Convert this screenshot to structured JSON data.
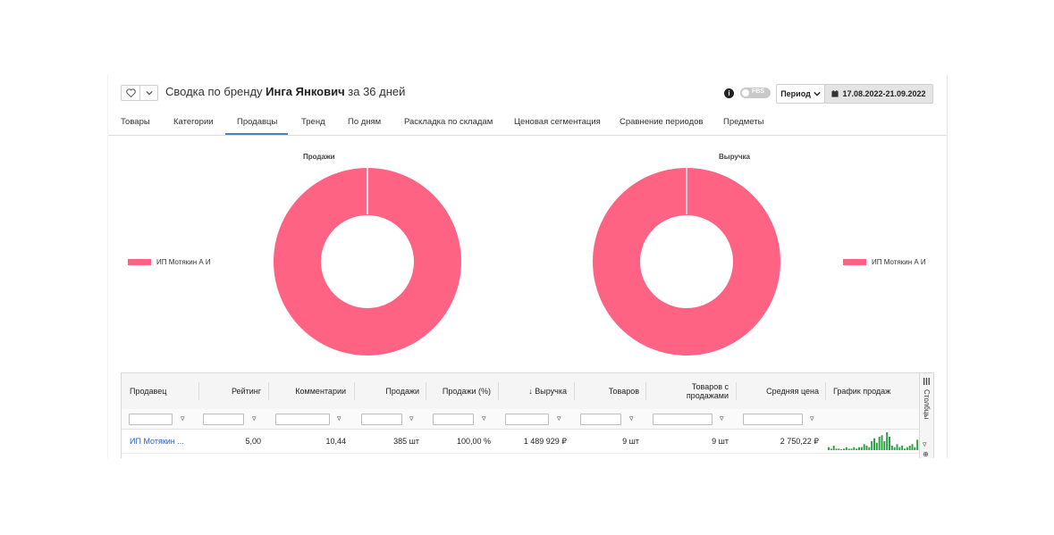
{
  "header": {
    "title_prefix": "Сводка по бренду",
    "brand": "Инга Янкович",
    "title_suffix": "за 36 дней",
    "fbs_label": "FBS",
    "period_label": "Период",
    "date_range": "17.08.2022-21.09.2022"
  },
  "tabs": [
    "Товары",
    "Категории",
    "Продавцы",
    "Тренд",
    "По дням",
    "Раскладка по складам",
    "Ценовая сегментация",
    "Сравнение периодов",
    "Предметы"
  ],
  "active_tab": "Продавцы",
  "colors": {
    "accent": "#4a7fc1",
    "slice": "#ff6384",
    "spark": "#2ea043"
  },
  "charts": {
    "sales": {
      "title": "Продажи",
      "legend": "ИП Мотякин А И"
    },
    "revenue": {
      "title": "Выручка",
      "legend": "ИП Мотякин А И"
    }
  },
  "chart_data": [
    {
      "type": "pie",
      "title": "Продажи",
      "categories": [
        "ИП Мотякин А И"
      ],
      "values": [
        100
      ],
      "legend": "left"
    },
    {
      "type": "pie",
      "title": "Выручка",
      "categories": [
        "ИП Мотякин А И"
      ],
      "values": [
        100
      ],
      "legend": "right"
    }
  ],
  "table": {
    "columns": [
      "Продавец",
      "Рейтинг",
      "Комментарии",
      "Продажи",
      "Продажи (%)",
      "↓ Выручка",
      "Товаров",
      "Товаров с продажами",
      "Средняя цена",
      "График продаж"
    ],
    "rows": [
      {
        "seller": "ИП Мотякин ...",
        "rating": "5,00",
        "comments": "10,44",
        "sales": "385 шт",
        "sales_pct": "100,00 %",
        "revenue": "1 489 929 ₽",
        "items": "9 шт",
        "items_with_sales": "9 шт",
        "avg_price": "2 750,22 ₽"
      }
    ],
    "sparkline": [
      2,
      1,
      3,
      1,
      1,
      0,
      1,
      2,
      1,
      1,
      2,
      1,
      2,
      2,
      4,
      3,
      2,
      6,
      8,
      5,
      9,
      10,
      6,
      12,
      9,
      3,
      2,
      4,
      2,
      3,
      1,
      2,
      3,
      4,
      2,
      7
    ],
    "side_panel_label": "Столбцы"
  }
}
